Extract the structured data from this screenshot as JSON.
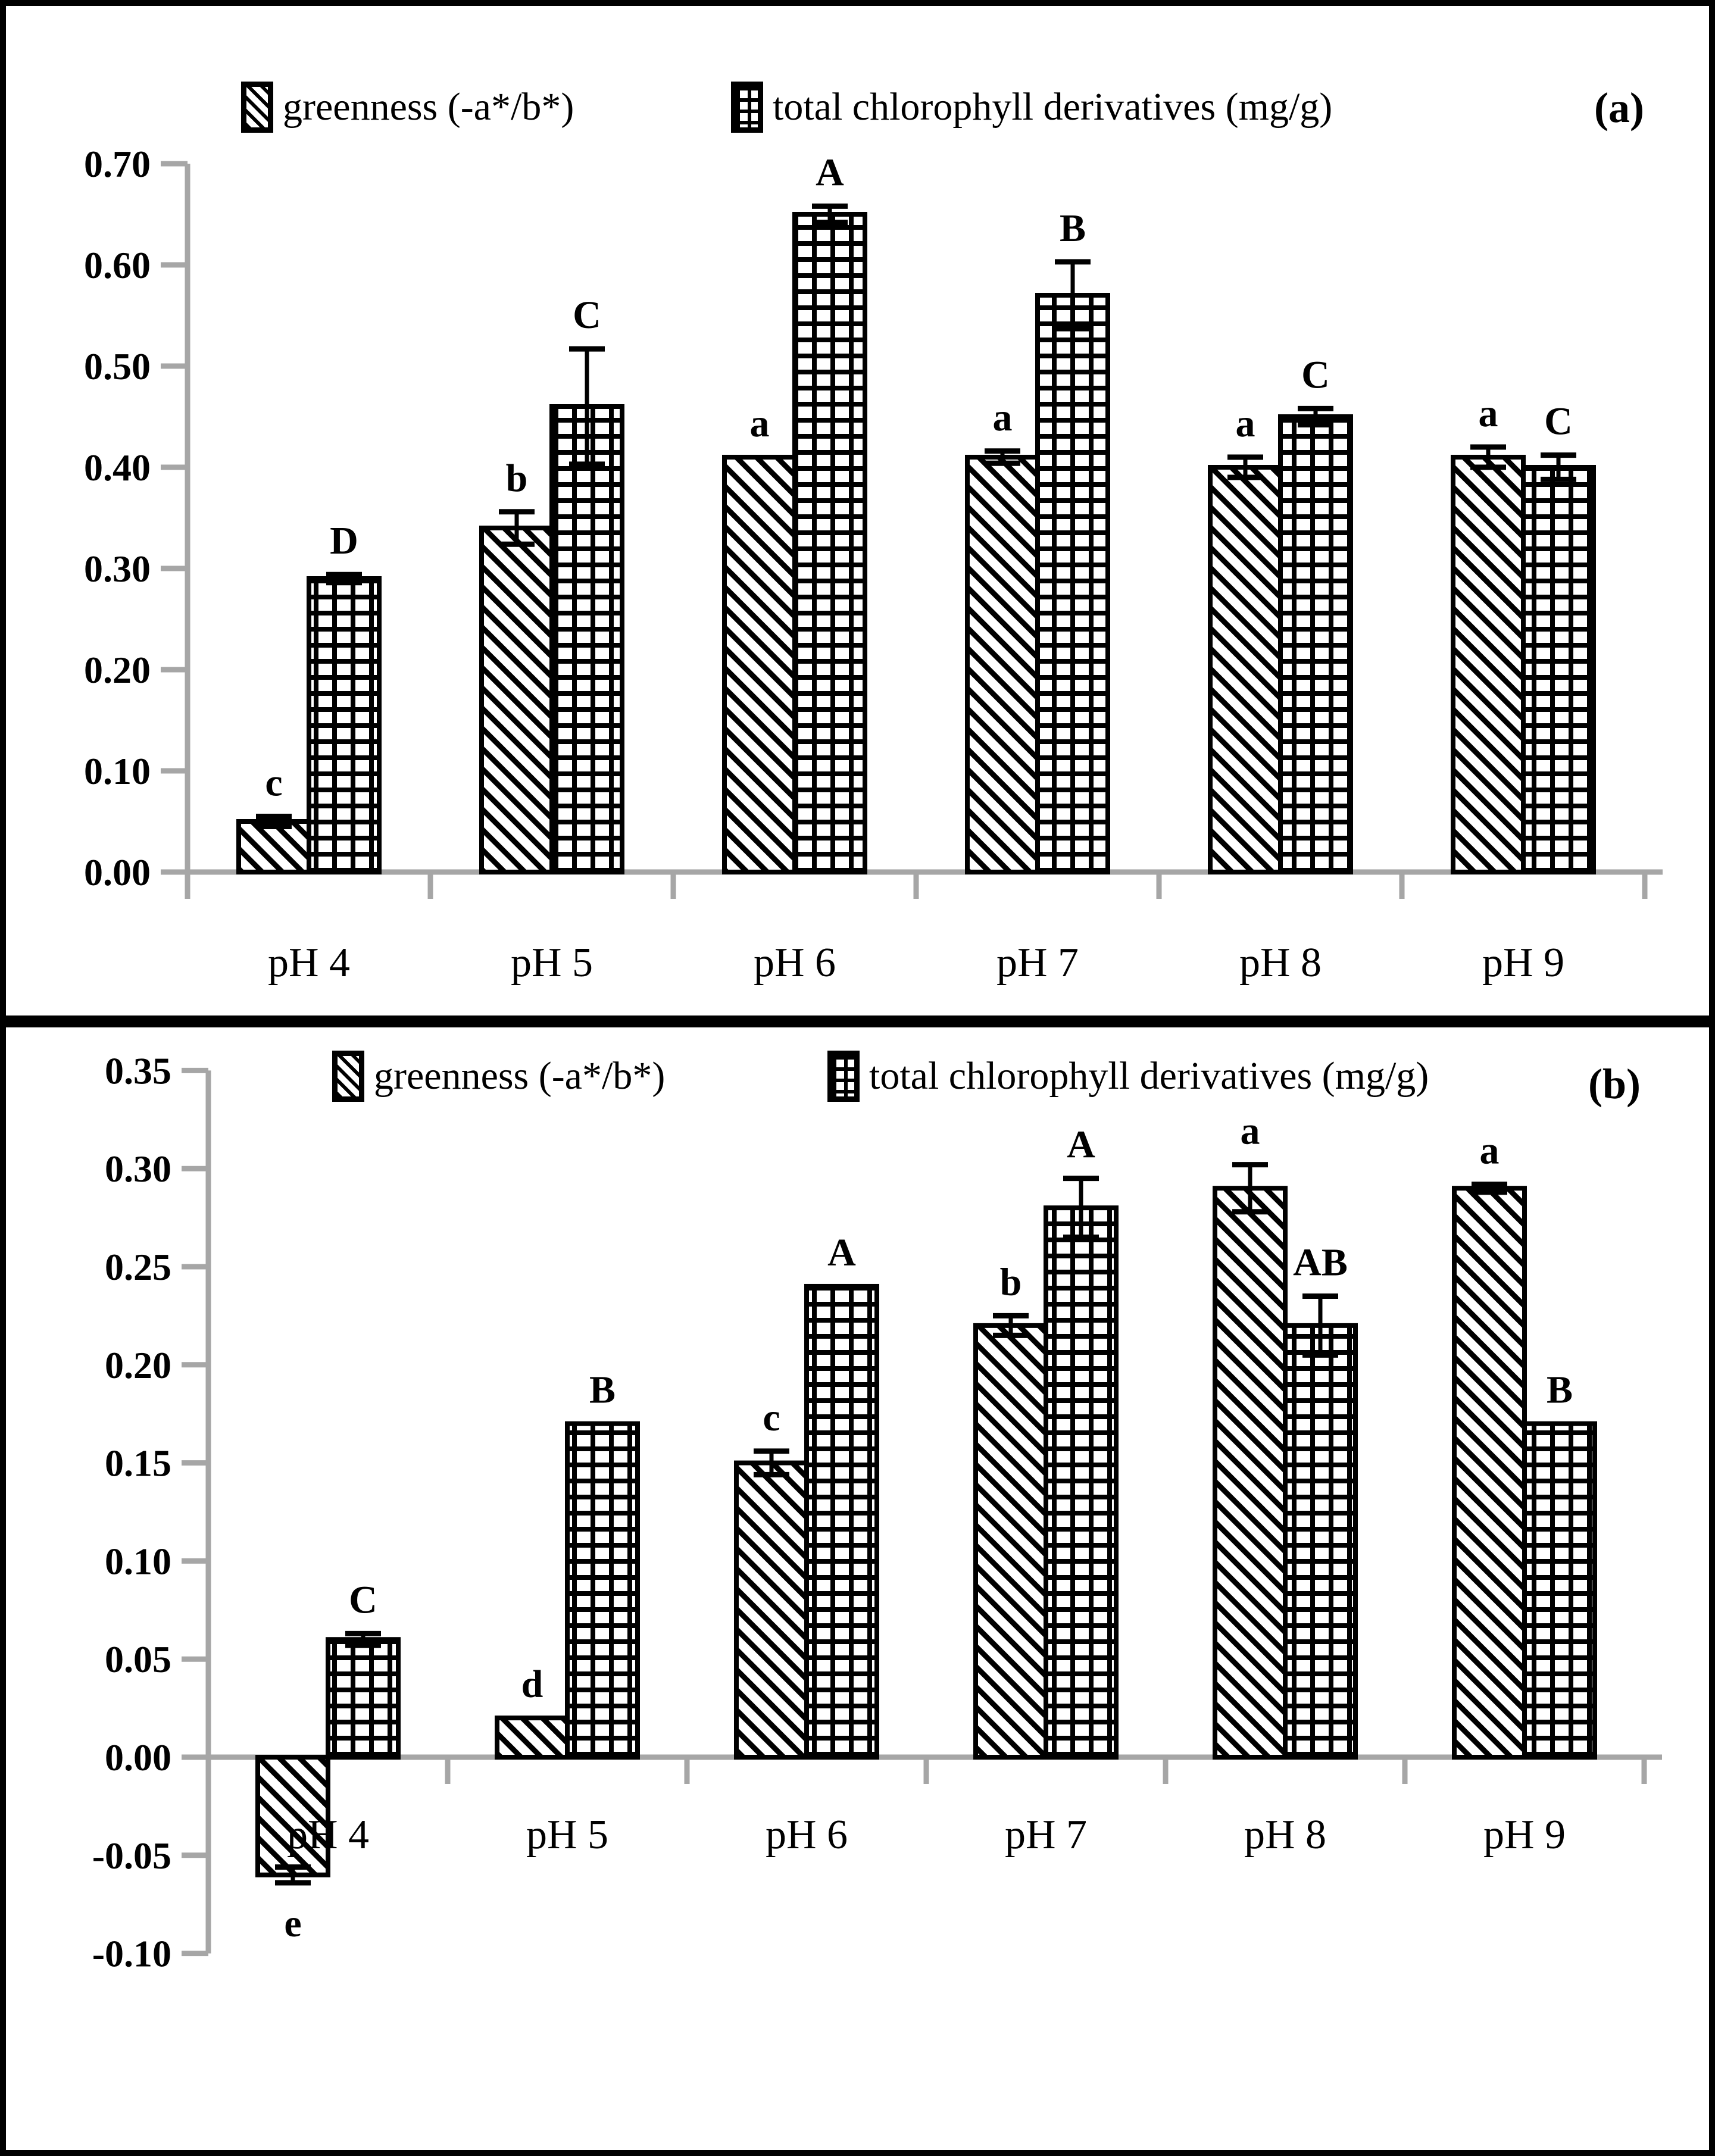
{
  "figure": {
    "panel_a_label": "(a)",
    "panel_b_label": "(b)",
    "colors": {
      "axis": "#a6a6a6",
      "bar_stroke": "#000000",
      "background": "#ffffff"
    }
  },
  "chart_data": [
    {
      "type": "bar",
      "panel": "(a)",
      "title": "",
      "xlabel": "",
      "ylabel": "",
      "grid": false,
      "legend_position": "top-center",
      "categories": [
        "pH 4",
        "pH 5",
        "pH 6",
        "pH 7",
        "pH 8",
        "pH 9"
      ],
      "ylim": [
        0.0,
        0.7
      ],
      "ytick_step": 0.1,
      "ytick_values": [
        0.0,
        0.1,
        0.2,
        0.3,
        0.4,
        0.5,
        0.6,
        0.7
      ],
      "ytick_labels": [
        "0.00",
        "0.10",
        "0.20",
        "0.30",
        "0.40",
        "0.50",
        "0.60",
        "0.70"
      ],
      "series": [
        {
          "name": "greenness (-a*/b*)",
          "pattern": "diagonal-hatch",
          "values": [
            0.05,
            0.34,
            0.41,
            0.41,
            0.4,
            0.41
          ],
          "errors": [
            0.005,
            0.016,
            0,
            0.006,
            0.01,
            0.01
          ],
          "letters": [
            "c",
            "b",
            "a",
            "a",
            "a",
            "a"
          ]
        },
        {
          "name": "total chlorophyll derivatives (mg/g)",
          "pattern": "grid-hatch",
          "values": [
            0.29,
            0.46,
            0.65,
            0.57,
            0.45,
            0.4
          ],
          "errors": [
            0.004,
            0.057,
            0.008,
            0.033,
            0.008,
            0.012
          ],
          "letters": [
            "D",
            "C",
            "A",
            "B",
            "C",
            "C"
          ]
        }
      ]
    },
    {
      "type": "bar",
      "panel": "(b)",
      "title": "",
      "xlabel": "",
      "ylabel": "",
      "grid": false,
      "legend_position": "top-center",
      "categories": [
        "pH 4",
        "pH 5",
        "pH 6",
        "pH 7",
        "pH 8",
        "pH 9"
      ],
      "ylim": [
        -0.1,
        0.35
      ],
      "ytick_step": 0.05,
      "ytick_values": [
        -0.1,
        -0.05,
        0.0,
        0.05,
        0.1,
        0.15,
        0.2,
        0.25,
        0.3,
        0.35
      ],
      "ytick_labels": [
        "-0.10",
        "-0.05",
        "0.00",
        "0.05",
        "0.10",
        "0.15",
        "0.20",
        "0.25",
        "0.30",
        "0.35"
      ],
      "series": [
        {
          "name": "greenness (-a*/b*)",
          "pattern": "diagonal-hatch",
          "values": [
            -0.06,
            0.02,
            0.15,
            0.22,
            0.29,
            0.29
          ],
          "errors": [
            0.004,
            0,
            0.006,
            0.005,
            0.012,
            0.002
          ],
          "letters": [
            "e",
            "d",
            "c",
            "b",
            "a",
            "a"
          ]
        },
        {
          "name": "total chlorophyll derivatives (mg/g)",
          "pattern": "grid-hatch",
          "values": [
            0.06,
            0.17,
            0.24,
            0.28,
            0.22,
            0.17
          ],
          "errors": [
            0.003,
            0,
            0,
            0.015,
            0.015,
            0
          ],
          "letters": [
            "C",
            "B",
            "A",
            "A",
            "AB",
            "B"
          ]
        }
      ]
    }
  ]
}
